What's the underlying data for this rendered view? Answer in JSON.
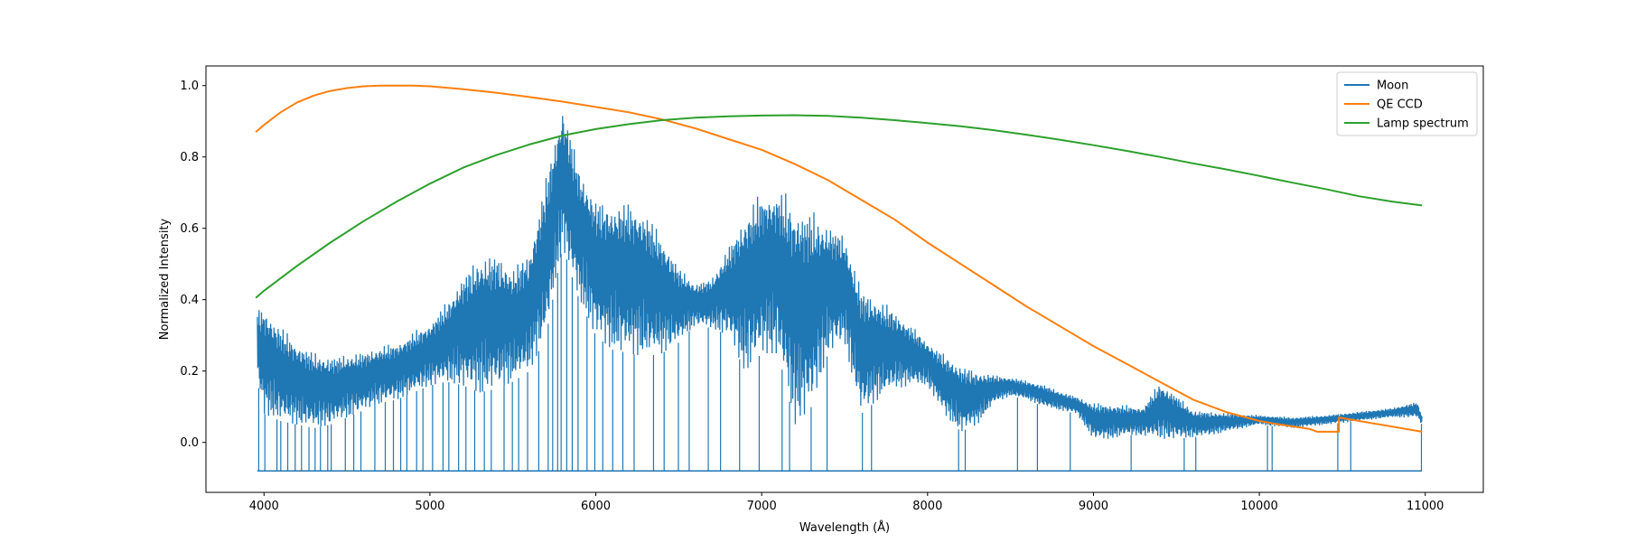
{
  "chart_data": {
    "type": "line",
    "title": "",
    "xlabel": "Wavelength (Å)",
    "ylabel": "Normalized Intensity",
    "xlim": [
      3650,
      11350
    ],
    "ylim": [
      -0.14,
      1.055
    ],
    "xticks": [
      4000,
      5000,
      6000,
      7000,
      8000,
      9000,
      10000,
      11000
    ],
    "yticks": [
      0.0,
      0.2,
      0.4,
      0.6,
      0.8,
      1.0
    ],
    "ytick_labels": [
      "0.0",
      "0.2",
      "0.4",
      "0.6",
      "0.8",
      "1.0"
    ],
    "grid": false,
    "legend_position": "upper right",
    "series": [
      {
        "name": "Moon",
        "color": "#1f77b4",
        "dense": true,
        "baseline": -0.08,
        "envelope_upper": [
          [
            3960,
            0.4
          ],
          [
            4000,
            0.42
          ],
          [
            4100,
            0.36
          ],
          [
            4200,
            0.31
          ],
          [
            4300,
            0.28
          ],
          [
            4400,
            0.265
          ],
          [
            4500,
            0.27
          ],
          [
            4600,
            0.275
          ],
          [
            4700,
            0.29
          ],
          [
            4800,
            0.3
          ],
          [
            4900,
            0.33
          ],
          [
            5000,
            0.36
          ],
          [
            5100,
            0.42
          ],
          [
            5200,
            0.51
          ],
          [
            5300,
            0.57
          ],
          [
            5400,
            0.58
          ],
          [
            5500,
            0.53
          ],
          [
            5600,
            0.58
          ],
          [
            5700,
            0.8
          ],
          [
            5800,
            1.0
          ],
          [
            5900,
            0.82
          ],
          [
            6000,
            0.73
          ],
          [
            6100,
            0.72
          ],
          [
            6200,
            0.73
          ],
          [
            6300,
            0.7
          ],
          [
            6400,
            0.62
          ],
          [
            6500,
            0.52
          ],
          [
            6600,
            0.46
          ],
          [
            6700,
            0.48
          ],
          [
            6800,
            0.58
          ],
          [
            6900,
            0.7
          ],
          [
            7000,
            0.76
          ],
          [
            7100,
            0.77
          ],
          [
            7200,
            0.75
          ],
          [
            7300,
            0.72
          ],
          [
            7400,
            0.66
          ],
          [
            7500,
            0.62
          ],
          [
            7600,
            0.48
          ],
          [
            7700,
            0.44
          ],
          [
            7800,
            0.4
          ],
          [
            7900,
            0.35
          ],
          [
            8000,
            0.3
          ],
          [
            8100,
            0.27
          ],
          [
            8200,
            0.24
          ],
          [
            8300,
            0.22
          ],
          [
            8400,
            0.2
          ],
          [
            8500,
            0.19
          ],
          [
            8600,
            0.18
          ],
          [
            8700,
            0.17
          ],
          [
            8800,
            0.15
          ],
          [
            8900,
            0.135
          ],
          [
            9000,
            0.125
          ],
          [
            9100,
            0.12
          ],
          [
            9200,
            0.115
          ],
          [
            9300,
            0.11
          ],
          [
            9400,
            0.19
          ],
          [
            9500,
            0.15
          ],
          [
            9600,
            0.1
          ],
          [
            9700,
            0.095
          ],
          [
            9800,
            0.09
          ],
          [
            9900,
            0.085
          ],
          [
            10000,
            0.08
          ],
          [
            10200,
            0.075
          ],
          [
            10400,
            0.08
          ],
          [
            10600,
            0.09
          ],
          [
            10800,
            0.1
          ],
          [
            10950,
            0.12
          ],
          [
            10980,
            0.08
          ]
        ],
        "envelope_lower": [
          [
            3960,
            0.17
          ],
          [
            4000,
            0.08
          ],
          [
            4100,
            0.06
          ],
          [
            4200,
            0.05
          ],
          [
            4300,
            0.04
          ],
          [
            4400,
            0.05
          ],
          [
            4500,
            0.07
          ],
          [
            4600,
            0.09
          ],
          [
            4700,
            0.11
          ],
          [
            4800,
            0.12
          ],
          [
            4900,
            0.14
          ],
          [
            5000,
            0.16
          ],
          [
            5100,
            0.17
          ],
          [
            5200,
            0.16
          ],
          [
            5300,
            0.14
          ],
          [
            5400,
            0.15
          ],
          [
            5500,
            0.17
          ],
          [
            5600,
            0.2
          ],
          [
            5700,
            0.3
          ],
          [
            5800,
            0.55
          ],
          [
            5900,
            0.4
          ],
          [
            6000,
            0.3
          ],
          [
            6100,
            0.26
          ],
          [
            6200,
            0.25
          ],
          [
            6300,
            0.24
          ],
          [
            6400,
            0.25
          ],
          [
            6500,
            0.28
          ],
          [
            6600,
            0.33
          ],
          [
            6700,
            0.32
          ],
          [
            6800,
            0.3
          ],
          [
            6900,
            0.2
          ],
          [
            7000,
            0.25
          ],
          [
            7100,
            0.25
          ],
          [
            7200,
            0.05
          ],
          [
            7300,
            0.1
          ],
          [
            7400,
            0.25
          ],
          [
            7500,
            0.28
          ],
          [
            7600,
            0.08
          ],
          [
            7700,
            0.12
          ],
          [
            7800,
            0.15
          ],
          [
            7900,
            0.16
          ],
          [
            8000,
            0.16
          ],
          [
            8100,
            0.08
          ],
          [
            8200,
            0.03
          ],
          [
            8300,
            0.05
          ],
          [
            8400,
            0.11
          ],
          [
            8500,
            0.13
          ],
          [
            8600,
            0.12
          ],
          [
            8700,
            0.1
          ],
          [
            8800,
            0.09
          ],
          [
            8900,
            0.08
          ],
          [
            9000,
            0.01
          ],
          [
            9100,
            0.01
          ],
          [
            9200,
            0.02
          ],
          [
            9300,
            0.02
          ],
          [
            9400,
            0.01
          ],
          [
            9500,
            0.01
          ],
          [
            9600,
            0.015
          ],
          [
            9700,
            0.02
          ],
          [
            9800,
            0.03
          ],
          [
            9900,
            0.04
          ],
          [
            10000,
            0.05
          ],
          [
            10200,
            0.04
          ],
          [
            10400,
            0.05
          ],
          [
            10600,
            0.06
          ],
          [
            10800,
            0.07
          ],
          [
            10950,
            0.07
          ],
          [
            10980,
            0.05
          ]
        ],
        "deep_lines": [
          3968,
          4005,
          4078,
          4101,
          4143,
          4188,
          4226,
          4271,
          4308,
          4340,
          4384,
          4405,
          4490,
          4541,
          4584,
          4668,
          4731,
          4780,
          4824,
          4861,
          4920,
          4958,
          5016,
          5079,
          5114,
          5173,
          5217,
          5270,
          5328,
          5370,
          5447,
          5497,
          5535,
          5589,
          5656,
          5713,
          5740,
          5770,
          5791,
          5825,
          5858,
          5893,
          5947,
          5994,
          6042,
          6102,
          6163,
          6231,
          6348,
          6412,
          6498,
          6563,
          6678,
          6752,
          6867,
          6985,
          7123,
          7168,
          7298,
          7394,
          7607,
          7662,
          8187,
          8227,
          8542,
          8662,
          8860,
          9227,
          9547,
          9617,
          10049,
          10077,
          10473,
          10551,
          10977
        ]
      },
      {
        "name": "QE CCD",
        "color": "#ff7f0e",
        "x": [
          3950,
          4000,
          4100,
          4200,
          4300,
          4400,
          4500,
          4600,
          4700,
          4800,
          4900,
          5000,
          5200,
          5400,
          5600,
          5800,
          6000,
          6200,
          6400,
          6600,
          6800,
          7000,
          7200,
          7400,
          7600,
          7800,
          8000,
          8200,
          8400,
          8600,
          8800,
          9000,
          9200,
          9400,
          9600,
          9800,
          10000,
          10100,
          10200,
          10300,
          10350,
          10480,
          10480,
          10980
        ],
        "y": [
          0.87,
          0.89,
          0.925,
          0.953,
          0.972,
          0.985,
          0.993,
          0.998,
          1.0,
          1.0,
          1.0,
          0.998,
          0.99,
          0.98,
          0.968,
          0.955,
          0.94,
          0.925,
          0.905,
          0.88,
          0.85,
          0.82,
          0.78,
          0.735,
          0.68,
          0.625,
          0.56,
          0.5,
          0.44,
          0.38,
          0.325,
          0.27,
          0.22,
          0.17,
          0.12,
          0.085,
          0.06,
          0.052,
          0.045,
          0.038,
          0.03,
          0.03,
          0.07,
          0.03
        ]
      },
      {
        "name": "Lamp spectrum",
        "color": "#2ca02c",
        "x": [
          3950,
          4000,
          4200,
          4400,
          4600,
          4800,
          5000,
          5200,
          5400,
          5600,
          5800,
          6000,
          6200,
          6400,
          6600,
          6800,
          7000,
          7200,
          7400,
          7600,
          7800,
          8000,
          8200,
          8400,
          8600,
          8800,
          9000,
          9200,
          9400,
          9600,
          9800,
          10000,
          10200,
          10400,
          10600,
          10800,
          10980
        ],
        "y": [
          0.405,
          0.425,
          0.495,
          0.56,
          0.62,
          0.675,
          0.725,
          0.77,
          0.805,
          0.835,
          0.86,
          0.878,
          0.892,
          0.903,
          0.91,
          0.914,
          0.916,
          0.917,
          0.915,
          0.91,
          0.903,
          0.895,
          0.886,
          0.875,
          0.862,
          0.848,
          0.833,
          0.817,
          0.8,
          0.782,
          0.765,
          0.747,
          0.728,
          0.71,
          0.69,
          0.675,
          0.664
        ]
      }
    ]
  }
}
